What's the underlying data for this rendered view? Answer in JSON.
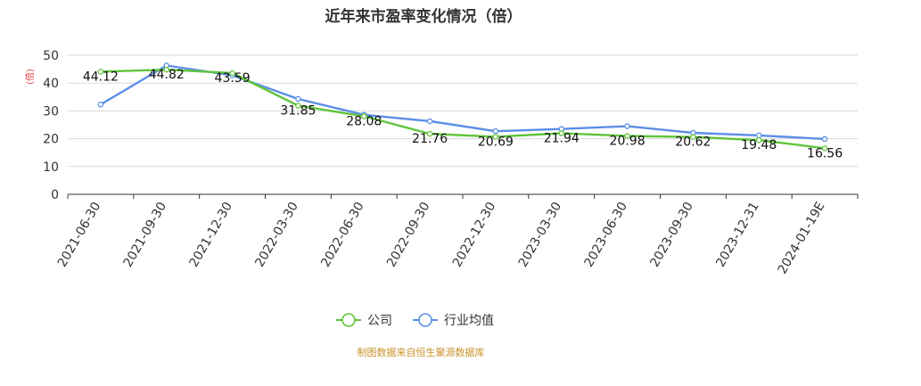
{
  "chart_data": {
    "type": "line",
    "title": "近年来市盈率变化情况（倍）",
    "ylabel": "(倍)",
    "xlabel": "",
    "ylim": [
      0,
      50
    ],
    "yticks": [
      0,
      10,
      20,
      30,
      40,
      50
    ],
    "categories": [
      "2021-06-30",
      "2021-09-30",
      "2021-12-30",
      "2022-03-30",
      "2022-06-30",
      "2022-09-30",
      "2022-12-30",
      "2023-03-30",
      "2023-06-30",
      "2023-09-30",
      "2023-12-31",
      "2024-01-19E"
    ],
    "series": [
      {
        "name": "公司",
        "color": "#5fc43a",
        "values": [
          44.12,
          44.82,
          43.59,
          31.85,
          28.08,
          21.76,
          20.69,
          21.94,
          20.98,
          20.62,
          19.48,
          16.56
        ],
        "labels": [
          "44.12",
          "44.82",
          "43.59",
          "31.85",
          "28.08",
          "21.76",
          "20.69",
          "21.94",
          "20.98",
          "20.62",
          "19.48",
          "16.56"
        ]
      },
      {
        "name": "行业均值",
        "color": "#5b8ee6",
        "values": [
          32.3,
          46.3,
          42.8,
          34.3,
          28.6,
          26.3,
          22.7,
          23.5,
          24.5,
          22.1,
          21.2,
          19.9
        ]
      }
    ],
    "legend_position": "bottom-center",
    "grid": true
  },
  "footer": {
    "source": "制图数据来自恒生聚源数据库"
  }
}
